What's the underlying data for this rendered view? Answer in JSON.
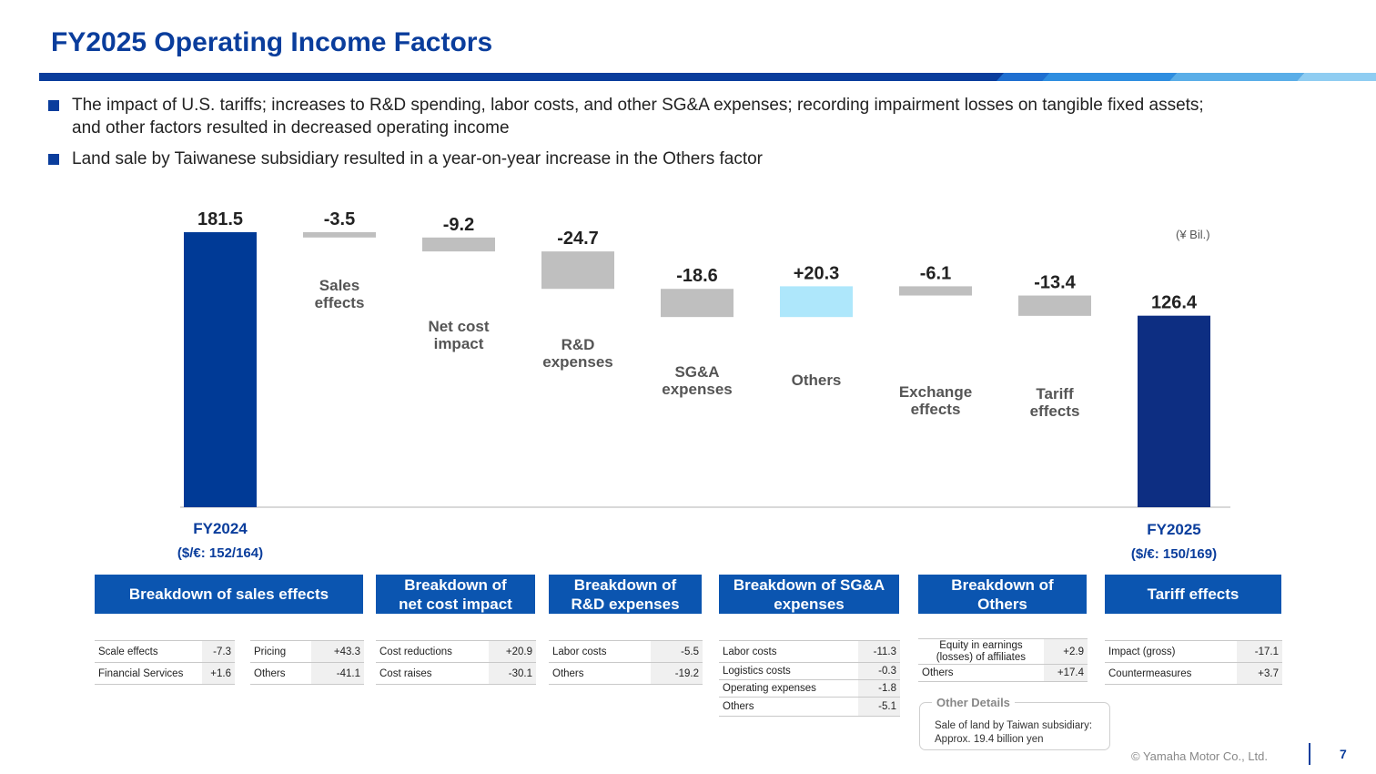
{
  "title": "FY2025 Operating Income Factors",
  "bullets": [
    "The impact of U.S. tariffs; increases to R&D spending, labor costs, and other SG&A expenses; recording impairment losses on tangible fixed assets;",
    "and other factors resulted in decreased operating income",
    "Land sale by Taiwanese subsidiary resulted in a year-on-year increase in the Others factor"
  ],
  "unit": "(¥ Bil.)",
  "chart_data": {
    "type": "bar",
    "subtype": "waterfall",
    "categories": [
      "FY2024",
      "Sales effects",
      "Net cost impact",
      "R&D expenses",
      "SG&A expenses",
      "Others",
      "Exchange effects",
      "Tariff effects",
      "FY2025"
    ],
    "category_lines": [
      [
        "Sales",
        "effects"
      ],
      [
        "Net cost",
        "impact"
      ],
      [
        "R&D",
        "expenses"
      ],
      [
        "SG&A",
        "expenses"
      ],
      [
        "Others"
      ],
      [
        "Exchange",
        "effects"
      ],
      [
        "Tariff",
        "effects"
      ]
    ],
    "values": [
      181.5,
      -3.5,
      -9.2,
      -24.7,
      -18.6,
      20.3,
      -6.1,
      -13.4,
      126.4
    ],
    "value_labels": [
      "181.5",
      "-3.5",
      "-9.2",
      "-24.7",
      "-18.6",
      "+20.3",
      "-6.1",
      "-13.4",
      "126.4"
    ],
    "start": {
      "label": "FY2024",
      "rate": "($/€: 152/164)"
    },
    "end": {
      "label": "FY2025",
      "rate": "($/€: 150/169)"
    },
    "colors": {
      "start": "#003a96",
      "end": "#0d2e82",
      "negative": "#bfbfbf",
      "positive": "#aee7fb"
    }
  },
  "breakdowns": {
    "sales": {
      "header": "Breakdown of sales effects",
      "left": [
        {
          "label": "Scale effects",
          "value": "-7.3"
        },
        {
          "label": "Financial Services",
          "value": "+1.6"
        }
      ],
      "right": [
        {
          "label": "Pricing",
          "value": "+43.3"
        },
        {
          "label": "Others",
          "value": "-41.1"
        }
      ]
    },
    "netcost": {
      "header_lines": [
        "Breakdown of",
        "net cost impact"
      ],
      "rows": [
        {
          "label": "Cost reductions",
          "value": "+20.9"
        },
        {
          "label": "Cost raises",
          "value": "-30.1"
        }
      ]
    },
    "rnd": {
      "header_lines": [
        "Breakdown of",
        "R&D expenses"
      ],
      "rows": [
        {
          "label": "Labor costs",
          "value": "-5.5"
        },
        {
          "label": "Others",
          "value": "-19.2"
        }
      ]
    },
    "sga": {
      "header_lines": [
        "Breakdown of SG&A",
        "expenses"
      ],
      "rows": [
        {
          "label": "Labor costs",
          "value": "-11.3"
        },
        {
          "label": "Logistics costs",
          "value": "-0.3"
        },
        {
          "label": "Operating expenses",
          "value": "-1.8"
        },
        {
          "label": "Others",
          "value": "-5.1"
        }
      ]
    },
    "others": {
      "header_lines": [
        "Breakdown of",
        "Others"
      ],
      "row1_lines": [
        "Equity in earnings",
        "(losses) of affiliates"
      ],
      "row1_value": "+2.9",
      "row2_label": "Others",
      "row2_value": "+17.4"
    },
    "tariff": {
      "header": "Tariff effects",
      "rows": [
        {
          "label": "Impact (gross)",
          "value": "-17.1"
        },
        {
          "label": "Countermeasures",
          "value": "+3.7"
        }
      ]
    }
  },
  "other_details": {
    "title": "Other Details",
    "lines": [
      "Sale of land by Taiwan subsidiary:",
      "Approx. 19.4 billion yen"
    ]
  },
  "footer": {
    "copyright": "© Yamaha Motor Co., Ltd.",
    "page": "7"
  }
}
